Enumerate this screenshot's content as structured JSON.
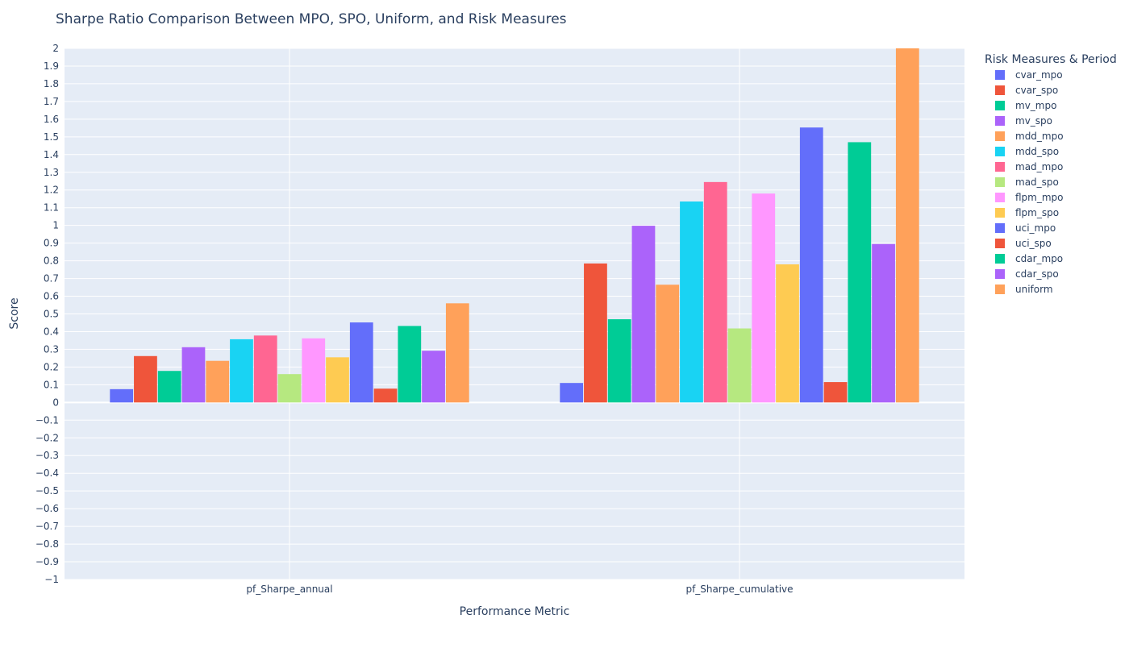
{
  "chart_data": {
    "type": "bar",
    "title": "Sharpe Ratio Comparison Between MPO, SPO, Uniform, and Risk Measures",
    "xlabel": "Performance Metric",
    "ylabel": "Score",
    "ylim": [
      -1,
      2
    ],
    "ytick_step": 0.1,
    "grid": true,
    "legend_title": "Risk Measures & Period",
    "legend_position": "right",
    "plot_background": "#e5ecf6",
    "categories": [
      "pf_Sharpe_annual",
      "pf_Sharpe_cumulative"
    ],
    "series": [
      {
        "name": "cvar_mpo",
        "color": "#636efa",
        "values": [
          0.075,
          0.11
        ]
      },
      {
        "name": "cvar_spo",
        "color": "#ef553b",
        "values": [
          0.262,
          0.785
        ]
      },
      {
        "name": "mv_mpo",
        "color": "#00cc96",
        "values": [
          0.178,
          0.47
        ]
      },
      {
        "name": "mv_spo",
        "color": "#ab63fa",
        "values": [
          0.312,
          0.998
        ]
      },
      {
        "name": "mdd_mpo",
        "color": "#ffa15a",
        "values": [
          0.235,
          0.665
        ]
      },
      {
        "name": "mdd_spo",
        "color": "#19d3f3",
        "values": [
          0.357,
          1.135
        ]
      },
      {
        "name": "mad_mpo",
        "color": "#ff6692",
        "values": [
          0.378,
          1.245
        ]
      },
      {
        "name": "mad_spo",
        "color": "#b6e880",
        "values": [
          0.16,
          0.418
        ]
      },
      {
        "name": "flpm_mpo",
        "color": "#ff97ff",
        "values": [
          0.362,
          1.18
        ]
      },
      {
        "name": "flpm_spo",
        "color": "#fecb52",
        "values": [
          0.255,
          0.78
        ]
      },
      {
        "name": "uci_mpo",
        "color": "#636efa",
        "values": [
          0.452,
          1.553
        ]
      },
      {
        "name": "uci_spo",
        "color": "#ef553b",
        "values": [
          0.078,
          0.115
        ]
      },
      {
        "name": "cdar_mpo",
        "color": "#00cc96",
        "values": [
          0.432,
          1.47
        ]
      },
      {
        "name": "cdar_spo",
        "color": "#ab63fa",
        "values": [
          0.292,
          0.895
        ]
      },
      {
        "name": "uniform",
        "color": "#ffa15a",
        "values": [
          0.56,
          2.0
        ]
      }
    ]
  }
}
